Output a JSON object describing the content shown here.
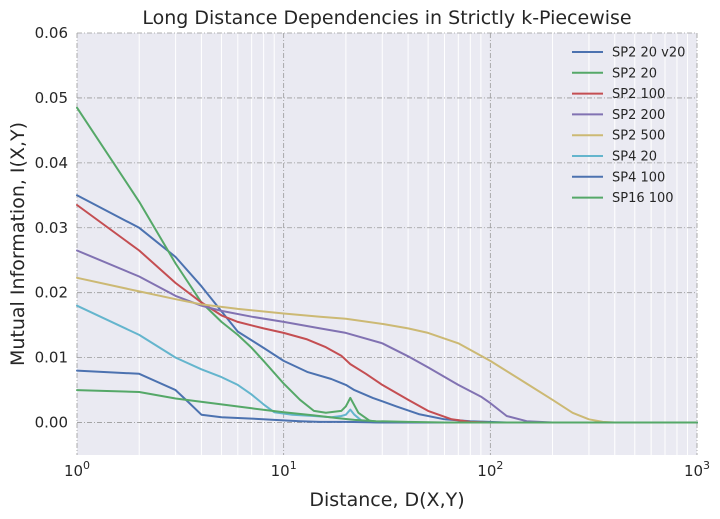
{
  "chart_data": {
    "type": "line",
    "title": "Long Distance Dependencies in Strictly k-Piecewise",
    "xlabel": "Distance, D(X,Y)",
    "ylabel": "Mutual Information, I(X,Y)",
    "xscale": "log",
    "xlim": [
      1,
      1000
    ],
    "ylim": [
      -0.005,
      0.06
    ],
    "yticks": [
      "0.00",
      "0.01",
      "0.02",
      "0.03",
      "0.04",
      "0.05",
      "0.06"
    ],
    "xticks": [
      {
        "base": "10",
        "exp": "0"
      },
      {
        "base": "10",
        "exp": "1"
      },
      {
        "base": "10",
        "exp": "2"
      },
      {
        "base": "10",
        "exp": "3"
      }
    ],
    "grid": true,
    "legend_position": "top-right",
    "series": [
      {
        "name": "SP2 20 v20",
        "color": "#4c72b0",
        "points": [
          [
            1,
            0.035
          ],
          [
            2,
            0.03
          ],
          [
            3,
            0.0255
          ],
          [
            4,
            0.021
          ],
          [
            6,
            0.014
          ],
          [
            8,
            0.0115
          ],
          [
            10,
            0.0095
          ],
          [
            13,
            0.0078
          ],
          [
            17,
            0.0067
          ],
          [
            20,
            0.0058
          ],
          [
            22,
            0.005
          ],
          [
            27,
            0.0038
          ],
          [
            35,
            0.0025
          ],
          [
            45,
            0.0013
          ],
          [
            60,
            0.0005
          ],
          [
            80,
            0.0002
          ],
          [
            120,
            0
          ],
          [
            1000,
            0
          ]
        ]
      },
      {
        "name": "SP2 20",
        "color": "#55a868",
        "points": [
          [
            1,
            0.0485
          ],
          [
            2,
            0.034
          ],
          [
            3,
            0.0245
          ],
          [
            4,
            0.0185
          ],
          [
            5,
            0.0155
          ],
          [
            6,
            0.0135
          ],
          [
            7,
            0.0115
          ],
          [
            8,
            0.0095
          ],
          [
            10,
            0.006
          ],
          [
            12,
            0.0035
          ],
          [
            14,
            0.0018
          ],
          [
            16,
            0.0015
          ],
          [
            19,
            0.0018
          ],
          [
            20,
            0.0025
          ],
          [
            21,
            0.0038
          ],
          [
            23,
            0.0015
          ],
          [
            26,
            0.0003
          ],
          [
            30,
            0
          ],
          [
            1000,
            0
          ]
        ]
      },
      {
        "name": "SP2 100",
        "color": "#c44e52",
        "points": [
          [
            1,
            0.0335
          ],
          [
            2,
            0.0265
          ],
          [
            3,
            0.0215
          ],
          [
            4,
            0.0185
          ],
          [
            5,
            0.0165
          ],
          [
            6,
            0.0155
          ],
          [
            8,
            0.0145
          ],
          [
            10,
            0.0138
          ],
          [
            13,
            0.0128
          ],
          [
            16,
            0.0116
          ],
          [
            19,
            0.0103
          ],
          [
            21,
            0.009
          ],
          [
            25,
            0.0075
          ],
          [
            30,
            0.0058
          ],
          [
            40,
            0.0035
          ],
          [
            50,
            0.0018
          ],
          [
            65,
            0.0005
          ],
          [
            80,
            0.0001
          ],
          [
            100,
            0
          ],
          [
            1000,
            0
          ]
        ]
      },
      {
        "name": "SP2 200",
        "color": "#8172b2",
        "points": [
          [
            1,
            0.0265
          ],
          [
            2,
            0.0225
          ],
          [
            3,
            0.0195
          ],
          [
            4,
            0.018
          ],
          [
            5,
            0.0172
          ],
          [
            7,
            0.0163
          ],
          [
            10,
            0.0155
          ],
          [
            15,
            0.0145
          ],
          [
            20,
            0.0138
          ],
          [
            30,
            0.0122
          ],
          [
            40,
            0.0102
          ],
          [
            50,
            0.0085
          ],
          [
            70,
            0.0058
          ],
          [
            90,
            0.004
          ],
          [
            100,
            0.003
          ],
          [
            120,
            0.001
          ],
          [
            150,
            0.0002
          ],
          [
            200,
            0
          ],
          [
            1000,
            0
          ]
        ]
      },
      {
        "name": "SP2 500",
        "color": "#ccb974",
        "points": [
          [
            1,
            0.0223
          ],
          [
            2,
            0.0202
          ],
          [
            3,
            0.019
          ],
          [
            4,
            0.0182
          ],
          [
            6,
            0.0175
          ],
          [
            10,
            0.0168
          ],
          [
            15,
            0.0163
          ],
          [
            20,
            0.016
          ],
          [
            30,
            0.0152
          ],
          [
            40,
            0.0145
          ],
          [
            50,
            0.0138
          ],
          [
            70,
            0.0122
          ],
          [
            100,
            0.0095
          ],
          [
            150,
            0.006
          ],
          [
            200,
            0.0035
          ],
          [
            250,
            0.0015
          ],
          [
            300,
            0.0005
          ],
          [
            350,
            0.0001
          ],
          [
            400,
            0
          ],
          [
            1000,
            0
          ]
        ]
      },
      {
        "name": "SP4 20",
        "color": "#64b5cd",
        "points": [
          [
            1,
            0.018
          ],
          [
            2,
            0.0135
          ],
          [
            3,
            0.01
          ],
          [
            4,
            0.0082
          ],
          [
            5,
            0.007
          ],
          [
            6,
            0.0058
          ],
          [
            7,
            0.0043
          ],
          [
            8,
            0.0028
          ],
          [
            9,
            0.0016
          ],
          [
            11,
            0.0012
          ],
          [
            14,
            0.001
          ],
          [
            17,
            0.0008
          ],
          [
            19,
            0.001
          ],
          [
            20,
            0.0012
          ],
          [
            21,
            0.002
          ],
          [
            22,
            0.0012
          ],
          [
            24,
            0.0002
          ],
          [
            28,
            0
          ],
          [
            1000,
            0
          ]
        ]
      },
      {
        "name": "SP4 100",
        "color": "#4c72b0",
        "points": [
          [
            1,
            0.008
          ],
          [
            2,
            0.0075
          ],
          [
            3,
            0.005
          ],
          [
            3.5,
            0.003
          ],
          [
            4,
            0.0012
          ],
          [
            5,
            0.0008
          ],
          [
            7,
            0.0006
          ],
          [
            9,
            0.0004
          ],
          [
            12,
            0.0002
          ],
          [
            15,
            0.0001
          ],
          [
            20,
            0.0001
          ],
          [
            30,
            0
          ],
          [
            1000,
            0
          ]
        ]
      },
      {
        "name": "SP16 100",
        "color": "#55a868",
        "points": [
          [
            1,
            0.005
          ],
          [
            2,
            0.0047
          ],
          [
            3,
            0.0037
          ],
          [
            5,
            0.0028
          ],
          [
            7,
            0.0022
          ],
          [
            10,
            0.0016
          ],
          [
            14,
            0.0011
          ],
          [
            18,
            0.0007
          ],
          [
            22,
            0.0004
          ],
          [
            28,
            0.0002
          ],
          [
            40,
            0.0001
          ],
          [
            60,
            0
          ],
          [
            1000,
            0
          ]
        ]
      }
    ]
  }
}
